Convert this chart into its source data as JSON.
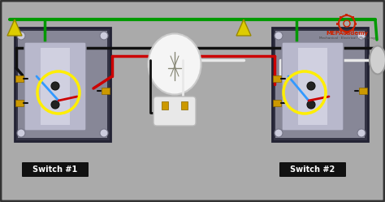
{
  "bg_color": "#aaaaaa",
  "wire_green": "#009900",
  "wire_red": "#cc0000",
  "wire_black": "#111111",
  "wire_white": "#e8e8e8",
  "wire_blue": "#3399ff",
  "yellow_connector": "#ddcc00",
  "yellow_circle": "#ffee00",
  "switch_box_outer": "#444455",
  "switch_box_inner": "#888899",
  "switch_plate": "#b8b8cc",
  "switch_plate_bright": "#d0d0e0",
  "brass": "#cc9900",
  "label_bg": "#111111",
  "label_fg": "#ffffff",
  "switch1_label": "Switch #1",
  "switch2_label": "Switch #2",
  "mep_red": "#cc2200",
  "bulb_base": "#ccccaa",
  "bulb_glass": "#f5f5f5",
  "conduit_color": "#d0d0d0",
  "green_small": "#007700"
}
